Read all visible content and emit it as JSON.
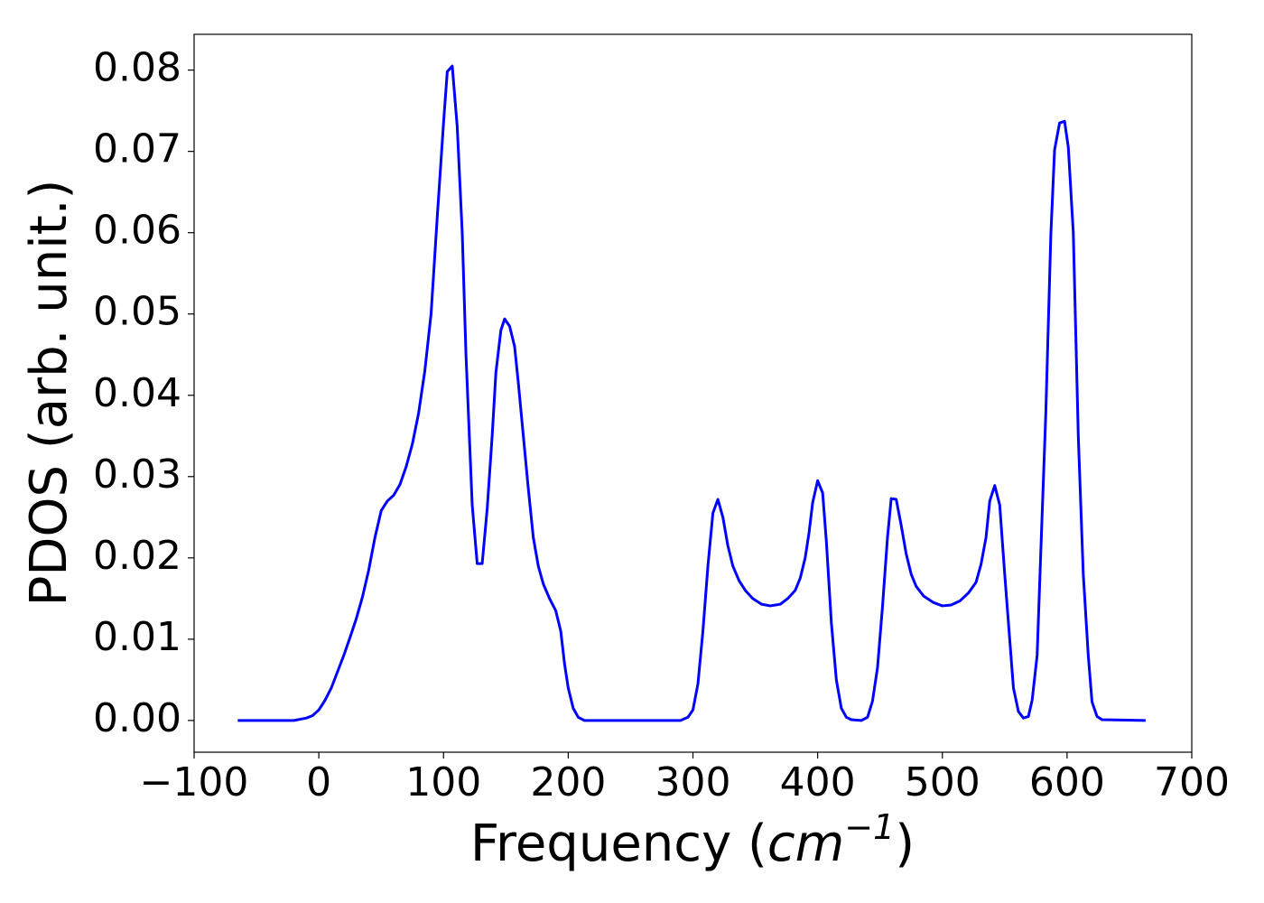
{
  "chart_data": {
    "type": "line",
    "xlabel": [
      "Frequency (",
      "cm",
      "−1",
      ")"
    ],
    "ylabel": "PDOS (arb. unit.)",
    "xlim": [
      -100,
      700
    ],
    "ylim": [
      -0.0039,
      0.0844
    ],
    "xticks": [
      {
        "value": -100,
        "label": "−100"
      },
      0,
      100,
      200,
      300,
      400,
      500,
      600,
      700
    ],
    "yticks": [
      {
        "value": 0,
        "label": "0.00"
      },
      0.01,
      0.02,
      0.03,
      0.04,
      0.05,
      0.06,
      0.07,
      0.08
    ],
    "grid": false,
    "x": [
      -65,
      -20,
      -10,
      -5,
      0,
      5,
      10,
      15,
      20,
      25,
      30,
      35,
      40,
      45,
      50,
      55,
      60,
      65,
      70,
      75,
      80,
      85,
      90,
      95,
      100,
      103,
      107,
      111,
      115,
      118,
      123,
      127,
      131,
      135,
      139,
      142,
      146,
      149,
      153,
      157,
      160,
      164,
      168,
      172,
      176,
      180,
      185,
      190,
      194,
      197,
      200,
      204,
      208,
      213,
      290,
      296,
      300,
      304,
      308,
      312,
      316,
      320,
      324,
      328,
      332,
      337,
      342,
      348,
      355,
      362,
      370,
      376,
      382,
      386,
      390,
      393,
      396,
      400,
      404,
      407,
      411,
      415,
      419,
      423,
      427,
      435,
      440,
      444,
      448,
      452,
      456,
      459,
      463,
      467,
      471,
      475,
      479,
      485,
      493,
      500,
      507,
      514,
      521,
      527,
      531,
      535,
      538,
      542,
      546,
      550,
      554,
      557,
      561,
      565,
      569,
      572,
      576,
      579,
      583,
      587,
      590,
      594,
      598,
      601,
      605,
      609,
      613,
      617,
      620,
      624,
      628,
      663
    ],
    "series": [
      {
        "color": "#0000ff",
        "values": [
          0,
          0,
          0.0003,
          0.0006,
          0.0013,
          0.0025,
          0.004,
          0.006,
          0.008,
          0.0102,
          0.0125,
          0.0152,
          0.0185,
          0.0225,
          0.0258,
          0.027,
          0.0277,
          0.029,
          0.0312,
          0.034,
          0.0378,
          0.043,
          0.05,
          0.062,
          0.0735,
          0.0798,
          0.0805,
          0.073,
          0.06,
          0.045,
          0.0265,
          0.0193,
          0.0193,
          0.026,
          0.035,
          0.0428,
          0.048,
          0.0494,
          0.0485,
          0.046,
          0.0415,
          0.035,
          0.0285,
          0.0225,
          0.019,
          0.0168,
          0.015,
          0.0135,
          0.011,
          0.007,
          0.004,
          0.0015,
          0.0004,
          0,
          0,
          0.0004,
          0.0013,
          0.0045,
          0.011,
          0.019,
          0.0255,
          0.0272,
          0.025,
          0.0215,
          0.019,
          0.0172,
          0.016,
          0.015,
          0.0143,
          0.0141,
          0.0143,
          0.015,
          0.016,
          0.0175,
          0.02,
          0.023,
          0.0268,
          0.0295,
          0.028,
          0.022,
          0.012,
          0.005,
          0.0015,
          0.0004,
          0.0001,
          0,
          0.0004,
          0.0024,
          0.0065,
          0.014,
          0.0225,
          0.0273,
          0.0272,
          0.024,
          0.0205,
          0.018,
          0.0165,
          0.0153,
          0.0145,
          0.0141,
          0.0142,
          0.0147,
          0.0157,
          0.017,
          0.0192,
          0.0225,
          0.027,
          0.0289,
          0.0265,
          0.018,
          0.01,
          0.004,
          0.0011,
          0.0003,
          0.0005,
          0.0025,
          0.008,
          0.021,
          0.038,
          0.0598,
          0.0702,
          0.0735,
          0.0737,
          0.0705,
          0.06,
          0.035,
          0.018,
          0.008,
          0.0023,
          0.0005,
          0.0001,
          0
        ]
      }
    ]
  }
}
